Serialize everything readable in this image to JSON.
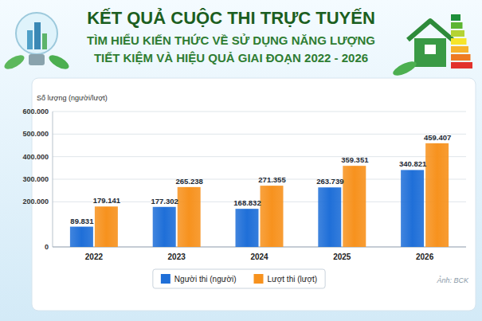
{
  "chart_data": {
    "type": "bar",
    "title": "KẾT QUẢ CUỘC THI TRỰC TUYẾN",
    "subtitle": [
      "TÌM HIỂU KIẾN THỨC VỀ SỬ DỤNG NĂNG LƯỢNG",
      "TIẾT KIỆM VÀ HIỆU QUẢ GIAI ĐOẠN 2022 - 2026"
    ],
    "y_label": "Số lượng (người/lượt)",
    "source": "Ảnh: BCK",
    "categories": [
      "2022",
      "2023",
      "2024",
      "2025",
      "2026"
    ],
    "series": [
      {
        "name": "Người thi (người)",
        "color": "#1f6fd8",
        "values": [
          89831,
          177302,
          168832,
          263739,
          340821
        ],
        "value_labels": [
          "89.831",
          "177.302",
          "168.832",
          "263.739",
          "340.821"
        ]
      },
      {
        "name": "Lượt thi (lượt)",
        "color": "#f7921e",
        "values": [
          179141,
          265238,
          271355,
          359351,
          459407
        ],
        "value_labels": [
          "179.141",
          "265.238",
          "271.355",
          "359.351",
          "459.407"
        ]
      }
    ],
    "ylim": [
      0,
      600000
    ],
    "yticks": [
      0,
      {
        "value": 200000,
        "label": "200.000"
      },
      {
        "value": 300000,
        "label": "300.000"
      },
      {
        "value": 400000,
        "label": "400.000"
      },
      {
        "value": 500000,
        "label": "500.000"
      },
      {
        "value": 600000,
        "label": "600.000"
      }
    ],
    "grid": true,
    "legend": "bottom",
    "data_labels": true
  }
}
